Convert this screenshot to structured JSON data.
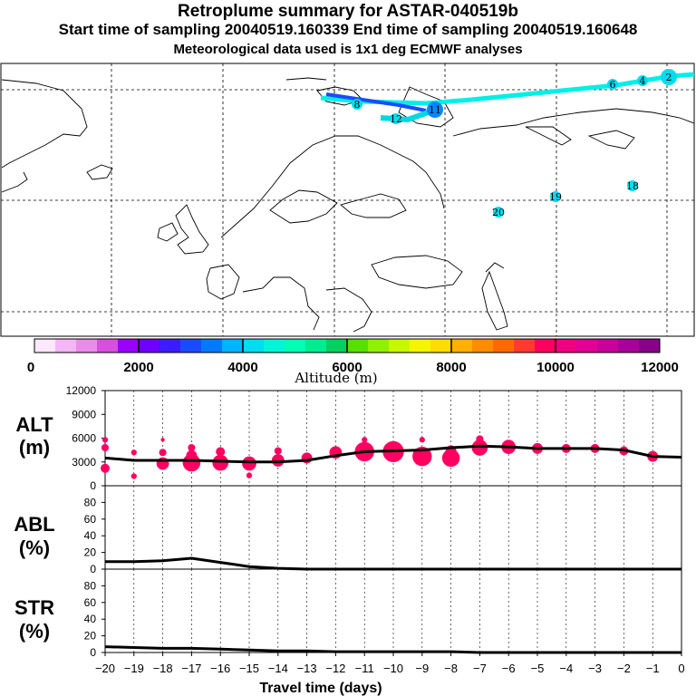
{
  "header": {
    "title": "Retroplume summary for ASTAR-040519b",
    "sampling_line": "Start time of sampling 20040519.160339      End time of sampling 20040519.160648",
    "met_line": "Meteorological data used is 1x1 deg ECMWF analyses"
  },
  "map": {
    "trajectory_labels": [
      "2",
      "4",
      "6",
      "8",
      "11",
      "12",
      "18",
      "19",
      "20"
    ],
    "label_points": [
      {
        "label": "2",
        "lon": 60.0,
        "lat": 86.5
      },
      {
        "label": "4",
        "lon": 55.0,
        "lat": 86.0
      },
      {
        "label": "6",
        "lon": 52.0,
        "lat": 85.5
      },
      {
        "label": "8",
        "lon": 18.0,
        "lat": 82.0
      },
      {
        "label": "11",
        "lon": 35.5,
        "lat": 81.8
      },
      {
        "label": "12",
        "lon": 25.0,
        "lat": 80.5
      },
      {
        "label": "18",
        "lon": 55.0,
        "lat": 69.0
      },
      {
        "label": "19",
        "lon": 45.0,
        "lat": 67.5
      },
      {
        "label": "20",
        "lon": 38.0,
        "lat": 66.0
      }
    ]
  },
  "colorbar": {
    "ticks": [
      "0",
      "2000",
      "4000",
      "6000",
      "8000",
      "10000",
      "12000"
    ],
    "label": "Altitude (m)",
    "colors": [
      "#fde8fd",
      "#f4b6f4",
      "#e98ce9",
      "#d84fe0",
      "#9a00ff",
      "#6e00ff",
      "#3c1cff",
      "#1a4cff",
      "#007aff",
      "#00b4ff",
      "#00dcf0",
      "#00f5d8",
      "#00ffb4",
      "#00ec90",
      "#00d060",
      "#56e000",
      "#8ff000",
      "#c8f800",
      "#f5f500",
      "#ffdd00",
      "#ffb000",
      "#ff8c00",
      "#ff6a00",
      "#ff3a30",
      "#ff0060",
      "#f00080",
      "#e20094",
      "#c8009c",
      "#a8009a",
      "#88008a"
    ]
  },
  "chart_data": [
    {
      "type": "line",
      "panel": "ALT",
      "ylabel_line1": "ALT",
      "ylabel_line2": "(m)",
      "ylim": [
        0,
        12000
      ],
      "yticks": [
        "0",
        "3000",
        "6000",
        "9000",
        "12000"
      ],
      "x": [
        -20,
        -19,
        -18,
        -17,
        -16,
        -15,
        -14,
        -13,
        -12,
        -11,
        -10,
        -9,
        -8,
        -7,
        -6,
        -5,
        -4,
        -3,
        -2,
        -1,
        0
      ],
      "series": [
        {
          "name": "mean altitude",
          "values": [
            3500,
            3200,
            3200,
            3200,
            3100,
            3000,
            3000,
            3200,
            3800,
            4300,
            4400,
            4500,
            4800,
            5000,
            4900,
            4700,
            4700,
            4700,
            4500,
            3700,
            3600
          ]
        }
      ],
      "plume_dots": [
        {
          "x": -20,
          "y": 4800,
          "s": 3
        },
        {
          "x": -20,
          "y": 2200,
          "s": 4
        },
        {
          "x": -20,
          "y": 5800,
          "s": 2
        },
        {
          "x": -19,
          "y": 4200,
          "s": 2
        },
        {
          "x": -19,
          "y": 1200,
          "s": 2
        },
        {
          "x": -18,
          "y": 2800,
          "s": 6
        },
        {
          "x": -18,
          "y": 4200,
          "s": 3
        },
        {
          "x": -18,
          "y": 5800,
          "s": 1
        },
        {
          "x": -17,
          "y": 2900,
          "s": 9
        },
        {
          "x": -17,
          "y": 3800,
          "s": 5
        },
        {
          "x": -17,
          "y": 4800,
          "s": 3
        },
        {
          "x": -16,
          "y": 2900,
          "s": 8
        },
        {
          "x": -16,
          "y": 4300,
          "s": 4
        },
        {
          "x": -15,
          "y": 2800,
          "s": 7
        },
        {
          "x": -15,
          "y": 1300,
          "s": 2
        },
        {
          "x": -14,
          "y": 3200,
          "s": 6
        },
        {
          "x": -14,
          "y": 4400,
          "s": 3
        },
        {
          "x": -13,
          "y": 3500,
          "s": 5
        },
        {
          "x": -12,
          "y": 4200,
          "s": 6
        },
        {
          "x": -11,
          "y": 4300,
          "s": 10
        },
        {
          "x": -11,
          "y": 5800,
          "s": 2
        },
        {
          "x": -10,
          "y": 4300,
          "s": 11
        },
        {
          "x": -9,
          "y": 3700,
          "s": 10
        },
        {
          "x": -9,
          "y": 5800,
          "s": 2
        },
        {
          "x": -8,
          "y": 3500,
          "s": 9
        },
        {
          "x": -8,
          "y": 4400,
          "s": 5
        },
        {
          "x": -7,
          "y": 4800,
          "s": 8
        },
        {
          "x": -7,
          "y": 5900,
          "s": 3
        },
        {
          "x": -6,
          "y": 4900,
          "s": 7
        },
        {
          "x": -5,
          "y": 4700,
          "s": 5
        },
        {
          "x": -4,
          "y": 4700,
          "s": 4
        },
        {
          "x": -3,
          "y": 4700,
          "s": 4
        },
        {
          "x": -2,
          "y": 4400,
          "s": 4
        },
        {
          "x": -1,
          "y": 3700,
          "s": 5
        }
      ],
      "dot_color": "#ff0060"
    },
    {
      "type": "line",
      "panel": "ABL",
      "ylabel_line1": "ABL",
      "ylabel_line2": "(%)",
      "ylim": [
        0,
        100
      ],
      "yticks": [
        "0",
        "20",
        "40",
        "60",
        "80"
      ],
      "x": [
        -20,
        -19,
        -18,
        -17,
        -16,
        -15,
        -14,
        -13,
        -12,
        -11,
        -10,
        -9,
        -8,
        -7,
        -6,
        -5,
        -4,
        -3,
        -2,
        -1,
        0
      ],
      "series": [
        {
          "name": "ABL fraction",
          "values": [
            9,
            9,
            10,
            13,
            8,
            3,
            1,
            0,
            0,
            0,
            0,
            0,
            0,
            0,
            0,
            0,
            0,
            0,
            0,
            0,
            0
          ]
        }
      ]
    },
    {
      "type": "line",
      "panel": "STR",
      "ylabel_line1": "STR",
      "ylabel_line2": "(%)",
      "ylim": [
        0,
        100
      ],
      "yticks": [
        "0",
        "20",
        "40",
        "60",
        "80"
      ],
      "xlabel": "Travel time (days)",
      "xticklabels": [
        "−20",
        "−19",
        "−18",
        "−17",
        "−16",
        "−15",
        "−14",
        "−13",
        "−12",
        "−11",
        "−10",
        "−9",
        "−8",
        "−7",
        "−6",
        "−5",
        "−4",
        "−3",
        "−2",
        "−1",
        "0"
      ],
      "x": [
        -20,
        -19,
        -18,
        -17,
        -16,
        -15,
        -14,
        -13,
        -12,
        -11,
        -10,
        -9,
        -8,
        -7,
        -6,
        -5,
        -4,
        -3,
        -2,
        -1,
        0
      ],
      "series": [
        {
          "name": "stratospheric fraction",
          "values": [
            7,
            6,
            5,
            5,
            4,
            3,
            2,
            2,
            1,
            1,
            1,
            1,
            1,
            0,
            0,
            0,
            0,
            0,
            0,
            0,
            0
          ]
        }
      ]
    }
  ]
}
